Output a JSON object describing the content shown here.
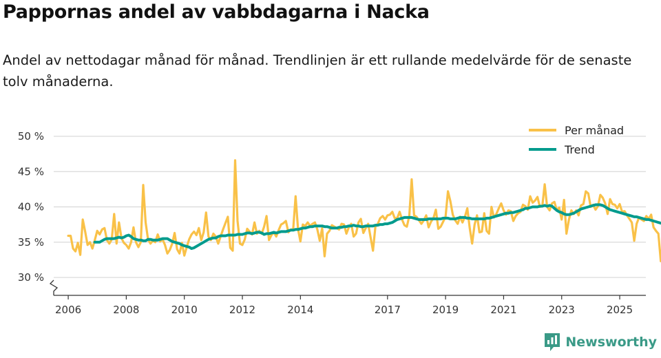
{
  "header": {
    "title": "Pappornas andel av vabbdagarna i Nacka",
    "subtitle": "Andel av nettodagar månad för månad. Trendlinjen är ett rullande medelvärde för de senaste tolv månaderna."
  },
  "brand": {
    "name": "Newsworthy",
    "icon": "newsworthy-logo-icon"
  },
  "colors": {
    "monthly": "#f9c148",
    "trend": "#009b8d",
    "grid": "#d9d9d9",
    "axis": "#333333"
  },
  "chart_data": {
    "type": "line",
    "title": "Pappornas andel av vabbdagarna i Nacka",
    "xlabel": "",
    "ylabel": "",
    "ylim": [
      30,
      50
    ],
    "xlim": [
      2005.5,
      2025.9
    ],
    "y_ticks": [
      30,
      35,
      40,
      45,
      50
    ],
    "y_tick_labels": [
      "30 %",
      "35 %",
      "40 %",
      "45 %",
      "50 %"
    ],
    "x_ticks": [
      2006,
      2008,
      2010,
      2012,
      2014,
      2017,
      2019,
      2021,
      2023,
      2025
    ],
    "x_tick_labels": [
      "2006",
      "2008",
      "2010",
      "2012",
      "2014",
      "2017",
      "2019",
      "2021",
      "2023",
      "2025"
    ],
    "axis_break": true,
    "grid": true,
    "legend": {
      "position": "top-right",
      "entries": [
        "Per månad",
        "Trend"
      ]
    },
    "series": [
      {
        "name": "Per månad",
        "start": 2006.0,
        "step": 0.08333,
        "values": [
          35.9,
          35.9,
          34.1,
          33.7,
          34.9,
          33.2,
          38.2,
          36.5,
          34.6,
          35.0,
          34.1,
          35.3,
          36.6,
          36.1,
          36.8,
          37.0,
          35.3,
          34.8,
          35.4,
          39.0,
          34.8,
          37.8,
          35.6,
          34.9,
          34.6,
          34.1,
          35.0,
          37.1,
          35.0,
          34.3,
          35.0,
          43.1,
          37.8,
          35.4,
          34.8,
          35.2,
          35.0,
          36.1,
          35.1,
          35.4,
          34.6,
          33.4,
          33.9,
          34.8,
          36.3,
          34.0,
          33.4,
          34.9,
          33.1,
          34.3,
          35.4,
          36.1,
          36.5,
          36.0,
          37.0,
          35.3,
          36.4,
          39.2,
          35.8,
          35.3,
          36.2,
          35.8,
          34.8,
          35.8,
          36.8,
          37.7,
          38.6,
          34.2,
          33.8,
          46.6,
          38.0,
          34.8,
          34.6,
          35.4,
          36.9,
          36.5,
          36.1,
          37.8,
          36.2,
          36.6,
          36.2,
          37.2,
          38.7,
          35.3,
          36.0,
          36.4,
          35.8,
          36.7,
          37.5,
          37.7,
          38.0,
          36.4,
          36.8,
          36.8,
          41.5,
          36.9,
          35.1,
          37.5,
          37.3,
          37.8,
          37.3,
          37.6,
          37.8,
          36.8,
          35.2,
          37.0,
          33.0,
          36.2,
          36.6,
          37.4,
          37.2,
          37.0,
          36.8,
          37.6,
          37.5,
          36.2,
          37.1,
          37.6,
          35.8,
          36.2,
          37.8,
          38.3,
          36.3,
          37.0,
          37.6,
          35.7,
          33.8,
          37.2,
          37.6,
          38.4,
          38.7,
          38.2,
          38.8,
          38.9,
          39.3,
          38.4,
          38.4,
          39.3,
          38.2,
          37.4,
          37.2,
          38.7,
          43.9,
          38.8,
          38.6,
          38.1,
          37.6,
          38.1,
          38.8,
          37.1,
          37.9,
          38.4,
          39.6,
          36.9,
          37.2,
          37.9,
          38.6,
          42.2,
          40.8,
          38.9,
          38.1,
          37.6,
          38.6,
          37.8,
          38.6,
          39.8,
          37.0,
          34.8,
          37.5,
          38.8,
          36.4,
          36.5,
          39.1,
          36.6,
          36.2,
          40.0,
          38.5,
          39.0,
          39.8,
          40.5,
          39.5,
          38.9,
          39.5,
          39.4,
          38.0,
          38.7,
          39.1,
          39.3,
          40.3,
          40.1,
          39.6,
          41.5,
          40.6,
          40.9,
          41.4,
          40.0,
          40.1,
          43.2,
          40.0,
          39.5,
          40.5,
          40.7,
          39.5,
          39.9,
          38.2,
          41.0,
          36.2,
          38.2,
          39.5,
          39.0,
          39.5,
          38.8,
          40.2,
          40.4,
          42.2,
          41.9,
          40.0,
          40.3,
          39.6,
          40.1,
          41.7,
          41.3,
          40.5,
          39.0,
          41.1,
          40.4,
          40.3,
          39.8,
          40.4,
          39.3,
          39.4,
          38.8,
          38.3,
          37.8,
          35.2,
          37.6,
          38.5,
          38.2,
          38.0,
          38.7,
          38.3,
          38.9,
          37.1,
          36.6,
          36.2,
          32.3,
          35.6,
          37.5,
          38.2,
          37.8,
          37.7,
          38.2,
          37.4,
          36.7,
          37.3,
          38.6,
          37.5,
          36.8,
          38.9
        ]
      },
      {
        "name": "Trend",
        "start": 2006.9167,
        "step": 0.08333,
        "values": [
          35.0,
          35.0,
          35.0,
          35.2,
          35.4,
          35.5,
          35.5,
          35.5,
          35.5,
          35.6,
          35.7,
          35.6,
          35.7,
          35.9,
          36.0,
          35.8,
          35.5,
          35.4,
          35.3,
          35.3,
          35.2,
          35.2,
          35.4,
          35.4,
          35.3,
          35.3,
          35.3,
          35.4,
          35.5,
          35.5,
          35.5,
          35.3,
          35.1,
          35.0,
          34.9,
          34.8,
          34.6,
          34.5,
          34.4,
          34.3,
          34.1,
          34.2,
          34.4,
          34.6,
          34.8,
          35.0,
          35.2,
          35.4,
          35.5,
          35.6,
          35.6,
          35.8,
          35.9,
          35.9,
          35.9,
          36.0,
          36.0,
          36.0,
          36.0,
          36.1,
          36.1,
          36.1,
          36.2,
          36.3,
          36.3,
          36.2,
          36.3,
          36.4,
          36.4,
          36.3,
          36.1,
          36.2,
          36.2,
          36.3,
          36.4,
          36.3,
          36.4,
          36.5,
          36.5,
          36.5,
          36.6,
          36.7,
          36.7,
          36.8,
          36.8,
          36.9,
          37.0,
          37.0,
          37.1,
          37.2,
          37.2,
          37.3,
          37.3,
          37.3,
          37.3,
          37.2,
          37.2,
          37.1,
          37.0,
          37.0,
          37.0,
          37.1,
          37.1,
          37.2,
          37.2,
          37.3,
          37.3,
          37.4,
          37.3,
          37.3,
          37.2,
          37.2,
          37.3,
          37.3,
          37.3,
          37.3,
          37.4,
          37.4,
          37.5,
          37.5,
          37.6,
          37.6,
          37.7,
          37.8,
          38.0,
          38.2,
          38.3,
          38.4,
          38.5,
          38.5,
          38.5,
          38.5,
          38.4,
          38.3,
          38.2,
          38.2,
          38.2,
          38.2,
          38.3,
          38.3,
          38.3,
          38.3,
          38.3,
          38.3,
          38.4,
          38.4,
          38.4,
          38.3,
          38.3,
          38.3,
          38.4,
          38.5,
          38.5,
          38.5,
          38.4,
          38.4,
          38.3,
          38.3,
          38.3,
          38.3,
          38.3,
          38.3,
          38.4,
          38.4,
          38.5,
          38.6,
          38.7,
          38.8,
          38.9,
          39.0,
          39.1,
          39.1,
          39.2,
          39.2,
          39.3,
          39.4,
          39.5,
          39.6,
          39.8,
          39.8,
          39.9,
          40.0,
          40.0,
          40.0,
          40.1,
          40.1,
          40.2,
          40.1,
          40.2,
          40.1,
          39.8,
          39.5,
          39.3,
          39.2,
          39.0,
          38.9,
          38.9,
          39.0,
          39.1,
          39.3,
          39.5,
          39.7,
          39.8,
          39.9,
          40.0,
          40.1,
          40.2,
          40.3,
          40.3,
          40.3,
          40.2,
          40.0,
          39.8,
          39.6,
          39.5,
          39.4,
          39.3,
          39.2,
          39.1,
          39.0,
          38.9,
          38.8,
          38.7,
          38.6,
          38.6,
          38.5,
          38.4,
          38.3,
          38.2,
          38.2,
          38.1,
          38.0,
          37.9,
          37.8,
          37.7,
          37.6,
          37.5,
          37.4,
          37.3,
          37.2,
          37.2,
          37.3,
          37.2,
          37.1,
          37.2,
          37.4
        ]
      }
    ]
  }
}
